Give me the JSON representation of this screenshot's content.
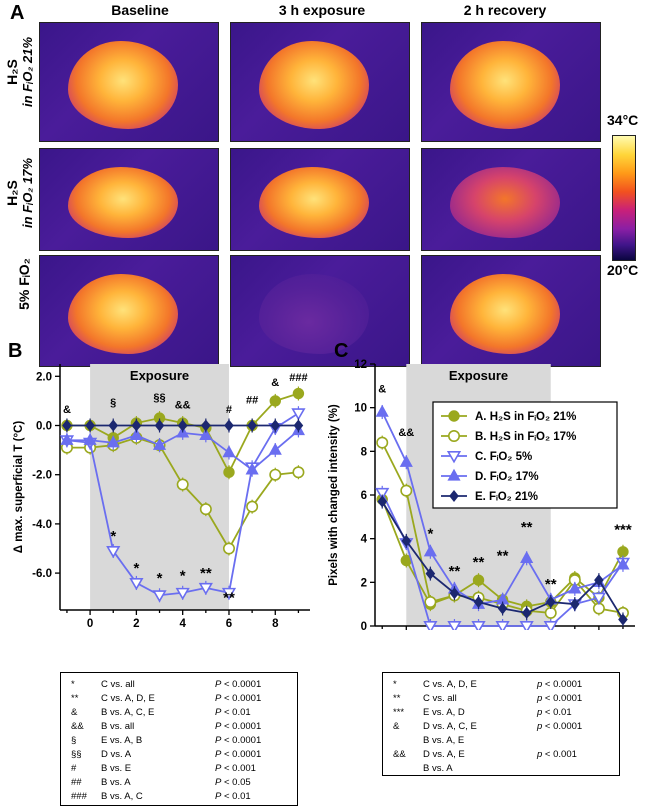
{
  "panelA": {
    "letter": "A",
    "columns": [
      "Baseline",
      "3 h exposure",
      "2 h recovery"
    ],
    "rows": [
      {
        "line1": "H₂S",
        "line2": "in FᵢO₂ 21%"
      },
      {
        "line1": "H₂S",
        "line2": "in FᵢO₂ 17%"
      },
      {
        "line1": "5% FᵢO₂",
        "line2": ""
      }
    ],
    "colorbar": {
      "max_label": "34°C",
      "min_label": "20°C"
    }
  },
  "chart_data": [
    {
      "panel": "B",
      "type": "line",
      "xlabel": "Time (h)",
      "ylabel": "Δ max. superficial T (°C)",
      "xlim": [
        -1.3,
        9.5
      ],
      "ylim": [
        -7.5,
        2.5
      ],
      "xticks": [
        "0",
        "2",
        "4",
        "6",
        "8"
      ],
      "yticks": [
        "2.0",
        "0.0",
        "-2.0",
        "-4.0",
        "-6.0"
      ],
      "shaded_region": {
        "x": [
          0,
          6
        ],
        "label": "Exposure"
      },
      "series": [
        {
          "name": "A",
          "color": "#9aa81e",
          "marker": "circle-filled",
          "x": [
            -1,
            0,
            1,
            2,
            3,
            4,
            5,
            6,
            7,
            8,
            9
          ],
          "y": [
            0.0,
            0.0,
            -0.5,
            0.1,
            0.3,
            0.1,
            -0.1,
            -1.9,
            0.0,
            1.0,
            1.3
          ]
        },
        {
          "name": "B",
          "color": "#9aa81e",
          "marker": "circle-open",
          "x": [
            -1,
            0,
            1,
            2,
            3,
            4,
            5,
            6,
            7,
            8,
            9
          ],
          "y": [
            -0.9,
            -0.9,
            -0.8,
            -0.5,
            -0.8,
            -2.4,
            -3.4,
            -5.0,
            -3.3,
            -2.0,
            -1.9
          ]
        },
        {
          "name": "C",
          "color": "#6a6ef0",
          "marker": "triangle-down-open",
          "x": [
            -1,
            0,
            1,
            2,
            3,
            4,
            5,
            6,
            7,
            8,
            9
          ],
          "y": [
            -0.6,
            -0.7,
            -5.1,
            -6.4,
            -6.9,
            -6.8,
            -6.6,
            -6.8,
            -1.7,
            -0.1,
            0.5
          ]
        },
        {
          "name": "D",
          "color": "#6a6ef0",
          "marker": "triangle-up-filled",
          "x": [
            -1,
            0,
            1,
            2,
            3,
            4,
            5,
            6,
            7,
            8,
            9
          ],
          "y": [
            -0.6,
            -0.6,
            -0.7,
            -0.4,
            -0.8,
            -0.3,
            -0.4,
            -1.1,
            -1.8,
            -1.0,
            -0.2
          ]
        },
        {
          "name": "E",
          "color": "#1c2870",
          "marker": "diamond-filled",
          "x": [
            -1,
            0,
            1,
            2,
            3,
            4,
            5,
            6,
            7,
            8,
            9
          ],
          "y": [
            0.0,
            0.0,
            0.0,
            0.0,
            0.0,
            0.0,
            0.0,
            0.0,
            0.0,
            0.0,
            0.0
          ]
        }
      ],
      "annotations": [
        {
          "text": "&",
          "x": -1,
          "y": 0.5
        },
        {
          "text": "§",
          "x": 1,
          "y": 0.8
        },
        {
          "text": "§§",
          "x": 3,
          "y": 1.0
        },
        {
          "text": "&&",
          "x": 4,
          "y": 0.7
        },
        {
          "text": "#",
          "x": 6,
          "y": 0.5
        },
        {
          "text": "##",
          "x": 7,
          "y": 0.9
        },
        {
          "text": "&",
          "x": 8,
          "y": 1.6
        },
        {
          "text": "###",
          "x": 9,
          "y": 1.8
        },
        {
          "text": "*",
          "x": 1,
          "y": -4.7
        },
        {
          "text": "*",
          "x": 2,
          "y": -6.0
        },
        {
          "text": "*",
          "x": 3,
          "y": -6.4
        },
        {
          "text": "*",
          "x": 4,
          "y": -6.3
        },
        {
          "text": "**",
          "x": 5,
          "y": -6.2
        },
        {
          "text": "**",
          "x": 6,
          "y": -7.2
        }
      ],
      "stats_table": [
        {
          "symbol": "*",
          "comparison": "C vs. all",
          "p": "P < 0.0001"
        },
        {
          "symbol": "**",
          "comparison": "C vs. A, D, E",
          "p": "P < 0.0001"
        },
        {
          "symbol": "&",
          "comparison": "B vs. A, C, E",
          "p": "P < 0.01"
        },
        {
          "symbol": "&&",
          "comparison": "B vs. all",
          "p": "P < 0.0001"
        },
        {
          "symbol": "§",
          "comparison": "E vs. A, B",
          "p": "P < 0.0001"
        },
        {
          "symbol": "§§",
          "comparison": "D vs. A",
          "p": "P < 0.0001"
        },
        {
          "symbol": "#",
          "comparison": "B vs. E",
          "p": "P < 0.001"
        },
        {
          "symbol": "##",
          "comparison": "B vs. A",
          "p": "P < 0.05"
        },
        {
          "symbol": "###",
          "comparison": "B vs. A, C",
          "p": "P < 0.01"
        }
      ]
    },
    {
      "panel": "C",
      "type": "line",
      "xlabel": "Time (h)",
      "ylabel": "Pixels with changed intensity (%)",
      "xlim": [
        -1.3,
        9.5
      ],
      "ylim": [
        0,
        12
      ],
      "xticks": [
        "0",
        "2",
        "4",
        "6",
        "8"
      ],
      "yticks": [
        "0",
        "2",
        "4",
        "6",
        "8",
        "10",
        "12"
      ],
      "shaded_region": {
        "x": [
          0,
          6
        ],
        "label": "Exposure"
      },
      "series": [
        {
          "name": "A. H₂S in FᵢO₂ 21%",
          "color": "#9aa81e",
          "marker": "circle-filled",
          "x": [
            -1,
            0,
            1,
            2,
            3,
            4,
            5,
            6,
            7,
            8,
            9
          ],
          "y": [
            5.8,
            3.0,
            1.0,
            1.4,
            2.1,
            1.2,
            0.9,
            1.1,
            2.2,
            1.3,
            3.4
          ]
        },
        {
          "name": "B. H₂S in FᵢO₂ 17%",
          "color": "#9aa81e",
          "marker": "circle-open",
          "x": [
            -1,
            0,
            1,
            2,
            3,
            4,
            5,
            6,
            7,
            8,
            9
          ],
          "y": [
            8.4,
            6.2,
            1.1,
            1.4,
            1.3,
            1.0,
            0.7,
            0.6,
            2.1,
            0.8,
            0.6
          ]
        },
        {
          "name": "C. FᵢO₂ 5%",
          "color": "#6a6ef0",
          "marker": "triangle-down-open",
          "x": [
            -1,
            0,
            1,
            2,
            3,
            4,
            5,
            6,
            7,
            8,
            9
          ],
          "y": [
            6.1,
            3.8,
            0.0,
            0.0,
            0.0,
            0.0,
            0.0,
            0.0,
            1.0,
            1.3,
            2.9
          ]
        },
        {
          "name": "D. FᵢO₂ 17%",
          "color": "#6a6ef0",
          "marker": "triangle-up-filled",
          "x": [
            -1,
            0,
            1,
            2,
            3,
            4,
            5,
            6,
            7,
            8,
            9
          ],
          "y": [
            9.8,
            7.5,
            3.4,
            1.7,
            1.0,
            1.2,
            3.1,
            1.2,
            1.7,
            2.0,
            2.8
          ]
        },
        {
          "name": "E. FᵢO₂ 21%",
          "color": "#1c2870",
          "marker": "diamond-filled",
          "x": [
            -1,
            0,
            1,
            2,
            3,
            4,
            5,
            6,
            7,
            8,
            9
          ],
          "y": [
            5.7,
            3.9,
            2.4,
            1.5,
            1.1,
            0.8,
            0.6,
            1.1,
            1.0,
            2.1,
            0.3
          ]
        }
      ],
      "annotations": [
        {
          "text": "&",
          "x": -1,
          "y": 10.7
        },
        {
          "text": "&&",
          "x": 0,
          "y": 8.7
        },
        {
          "text": "*",
          "x": 1,
          "y": 4.0
        },
        {
          "text": "**",
          "x": 2,
          "y": 2.3
        },
        {
          "text": "**",
          "x": 3,
          "y": 2.7
        },
        {
          "text": "**",
          "x": 4,
          "y": 3.0
        },
        {
          "text": "**",
          "x": 5,
          "y": 4.3
        },
        {
          "text": "**",
          "x": 6,
          "y": 1.7
        },
        {
          "text": "***",
          "x": 9,
          "y": 4.2
        }
      ],
      "legend": {
        "placement": "top-right"
      },
      "stats_table": [
        {
          "symbol": "*",
          "comparison": "C vs. A, D, E",
          "p": "p < 0.0001"
        },
        {
          "symbol": "**",
          "comparison": "C vs. all",
          "p": "p < 0.0001"
        },
        {
          "symbol": "***",
          "comparison": "E vs. A, D",
          "p": "p < 0.01"
        },
        {
          "symbol": "&",
          "comparison": "D vs. A, C, E",
          "p": "p < 0.0001"
        },
        {
          "symbol": "",
          "comparison": "B vs. A, E",
          "p": ""
        },
        {
          "symbol": "&&",
          "comparison": "D vs. A, E",
          "p": "p < 0.001"
        },
        {
          "symbol": "",
          "comparison": "B vs. A",
          "p": ""
        }
      ]
    }
  ]
}
